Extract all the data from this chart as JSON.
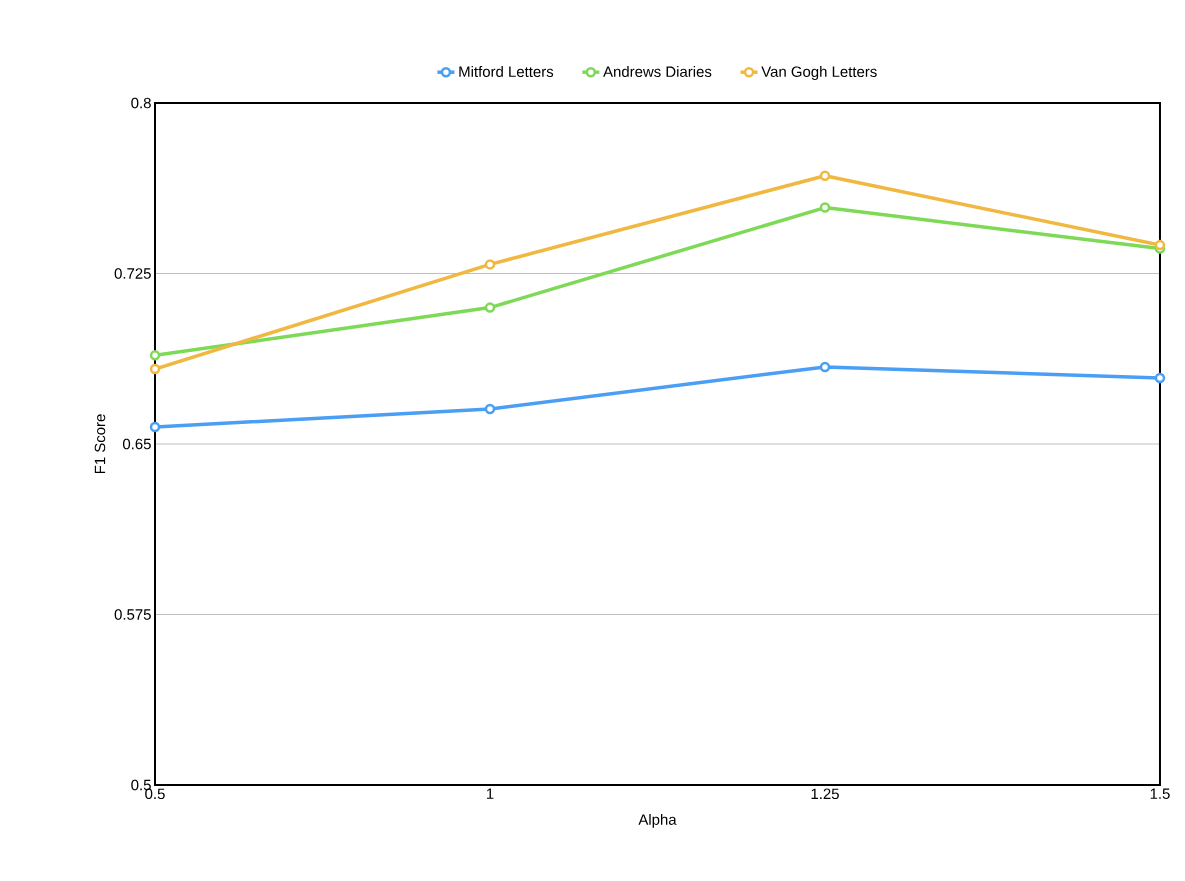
{
  "chart_data": {
    "type": "line",
    "xlabel": "Alpha",
    "ylabel": "F1 Score",
    "categories": [
      "0.5",
      "1",
      "1.25",
      "1.5"
    ],
    "series": [
      {
        "name": "Mitford Letters",
        "color": "#4a9ff5",
        "values": [
          0.6575,
          0.6654,
          0.6839,
          0.679
        ]
      },
      {
        "name": "Andrews Diaries",
        "color": "#7ed957",
        "values": [
          0.689,
          0.71,
          0.754,
          0.736
        ]
      },
      {
        "name": "Van Gogh Letters",
        "color": "#f0b840",
        "values": [
          0.683,
          0.729,
          0.768,
          0.7375
        ]
      }
    ],
    "ylim": [
      0.5,
      0.8
    ],
    "yticks": [
      0.5,
      0.575,
      0.65,
      0.725,
      0.8
    ],
    "grid": "y",
    "legend": "top",
    "marker": "circle",
    "line_style": "solid"
  }
}
